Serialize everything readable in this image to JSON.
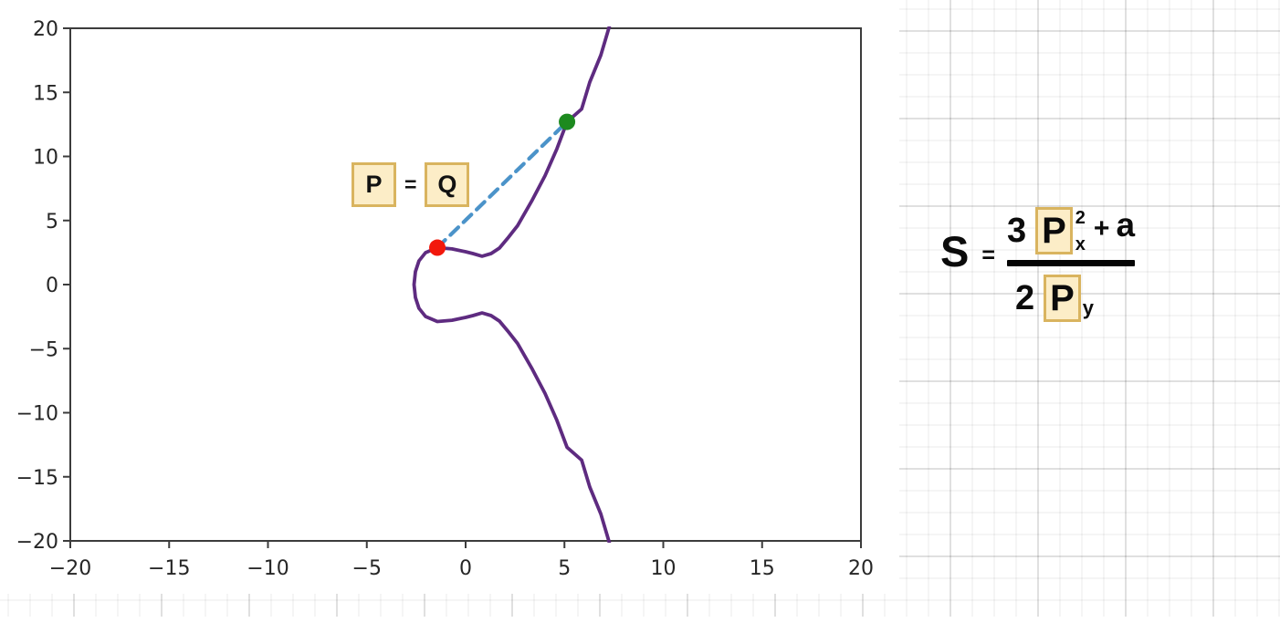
{
  "chart_data": {
    "type": "line",
    "title": "",
    "xlabel": "",
    "ylabel": "",
    "xlim": [
      -20,
      20
    ],
    "ylim": [
      -20,
      20
    ],
    "xticks": [
      -20,
      -15,
      -10,
      -5,
      0,
      5,
      10,
      15,
      20
    ],
    "yticks": [
      -20,
      -15,
      -10,
      -5,
      0,
      5,
      10,
      15,
      20
    ],
    "grid": false,
    "legend": "none",
    "series": [
      {
        "name": "elliptic-curve",
        "color": "#5e2b80",
        "style": "solid",
        "width": 3.8,
        "points": [
          [
            7.32,
            20.4
          ],
          [
            6.84,
            17.9
          ],
          [
            6.28,
            15.8
          ],
          [
            5.87,
            13.7
          ],
          [
            5.13,
            12.7
          ],
          [
            4.62,
            10.6
          ],
          [
            4.02,
            8.5
          ],
          [
            3.37,
            6.6
          ],
          [
            2.63,
            4.6
          ],
          [
            2.12,
            3.6
          ],
          [
            1.71,
            2.85
          ],
          [
            1.29,
            2.42
          ],
          [
            0.83,
            2.21
          ],
          [
            0.37,
            2.42
          ],
          [
            0.0,
            2.56
          ],
          [
            -0.69,
            2.78
          ],
          [
            -1.43,
            2.88
          ],
          [
            -2.03,
            2.49
          ],
          [
            -2.36,
            1.85
          ],
          [
            -2.54,
            1.0
          ],
          [
            -2.61,
            0.0
          ],
          [
            -2.54,
            -1.0
          ],
          [
            -2.36,
            -1.85
          ],
          [
            -2.03,
            -2.49
          ],
          [
            -1.43,
            -2.88
          ],
          [
            -0.69,
            -2.78
          ],
          [
            0.0,
            -2.56
          ],
          [
            0.37,
            -2.42
          ],
          [
            0.83,
            -2.21
          ],
          [
            1.29,
            -2.42
          ],
          [
            1.71,
            -2.85
          ],
          [
            2.12,
            -3.6
          ],
          [
            2.63,
            -4.6
          ],
          [
            3.37,
            -6.6
          ],
          [
            4.02,
            -8.5
          ],
          [
            4.62,
            -10.6
          ],
          [
            5.13,
            -12.7
          ],
          [
            5.87,
            -13.7
          ],
          [
            6.28,
            -15.8
          ],
          [
            6.84,
            -17.9
          ],
          [
            7.32,
            -20.4
          ]
        ]
      },
      {
        "name": "tangent-line",
        "color": "#4b93c9",
        "style": "dashed",
        "width": 4.2,
        "points": [
          [
            -1.43,
            2.88
          ],
          [
            5.13,
            12.7
          ]
        ]
      }
    ],
    "markers": [
      {
        "name": "point-P",
        "x": -1.43,
        "y": 2.88,
        "color": "#f2180c",
        "radius": 9
      },
      {
        "name": "point-2P-intersection",
        "x": 5.13,
        "y": 12.7,
        "color": "#1d8a1f",
        "radius": 9
      }
    ]
  },
  "annotation": {
    "left_label": "P",
    "equals": "=",
    "right_label": "Q"
  },
  "formula": {
    "lhs": "S",
    "equals": "=",
    "numerator": {
      "coef": "3",
      "var": "P",
      "sup": "2",
      "sub": "x",
      "plus": "+",
      "term": "a"
    },
    "denominator": {
      "coef": "2",
      "var": "P",
      "sub": "y"
    }
  },
  "colors": {
    "curve": "#5e2b80",
    "tangent": "#4b93c9",
    "point_p": "#f2180c",
    "point_q": "#1d8a1f",
    "highlight_box_fill": "#fcedc7",
    "highlight_box_border": "#d9b45f",
    "axis": "#3c3c3c",
    "tick_label": "#262626"
  }
}
